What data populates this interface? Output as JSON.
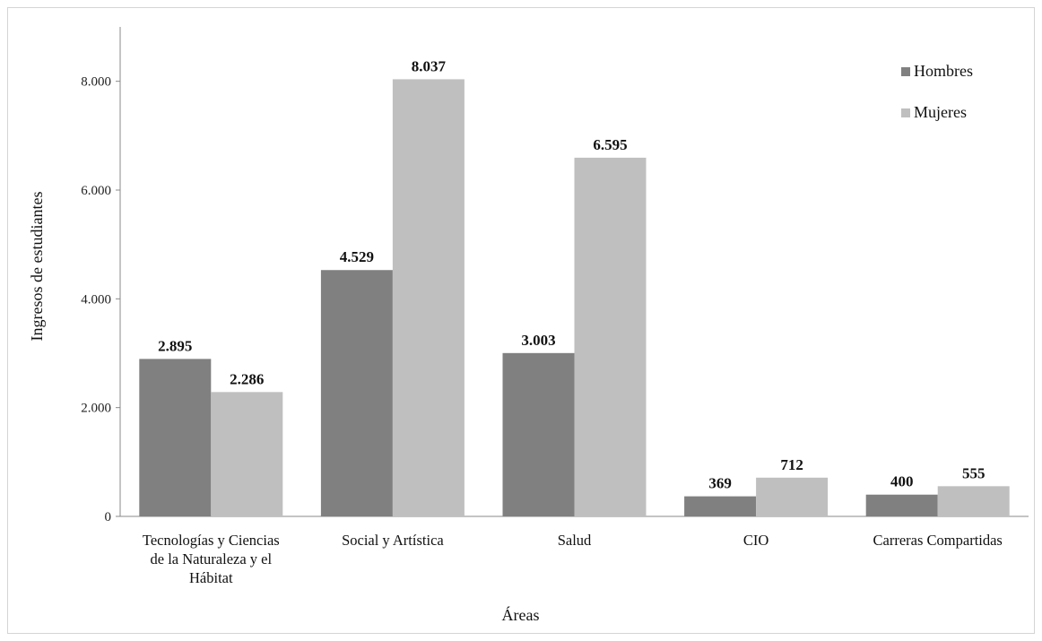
{
  "chart_data": {
    "type": "bar",
    "categories": [
      [
        "Tecnologías y Ciencias",
        "de la Naturaleza y el",
        "Hábitat"
      ],
      [
        "Social y Artística"
      ],
      [
        "Salud"
      ],
      [
        "CIO"
      ],
      [
        "Carreras Compartidas"
      ]
    ],
    "series": [
      {
        "name": "Hombres",
        "color": "#808080",
        "values": [
          2895,
          4529,
          3003,
          369,
          400
        ],
        "labels": [
          "2.895",
          "4.529",
          "3.003",
          "369",
          "400"
        ]
      },
      {
        "name": "Mujeres",
        "color": "#bfbfbf",
        "values": [
          2286,
          8037,
          6595,
          712,
          555
        ],
        "labels": [
          "2.286",
          "8.037",
          "6.595",
          "712",
          "555"
        ]
      }
    ],
    "xlabel": "Áreas",
    "ylabel": "Ingresos de estudiantes",
    "ylim": [
      0,
      9000
    ],
    "yticks": [
      0,
      2000,
      4000,
      6000,
      8000
    ],
    "ytick_labels": [
      "0",
      "2.000",
      "4.000",
      "6.000",
      "8.000"
    ],
    "grid": false,
    "legend_position": "top-right"
  }
}
